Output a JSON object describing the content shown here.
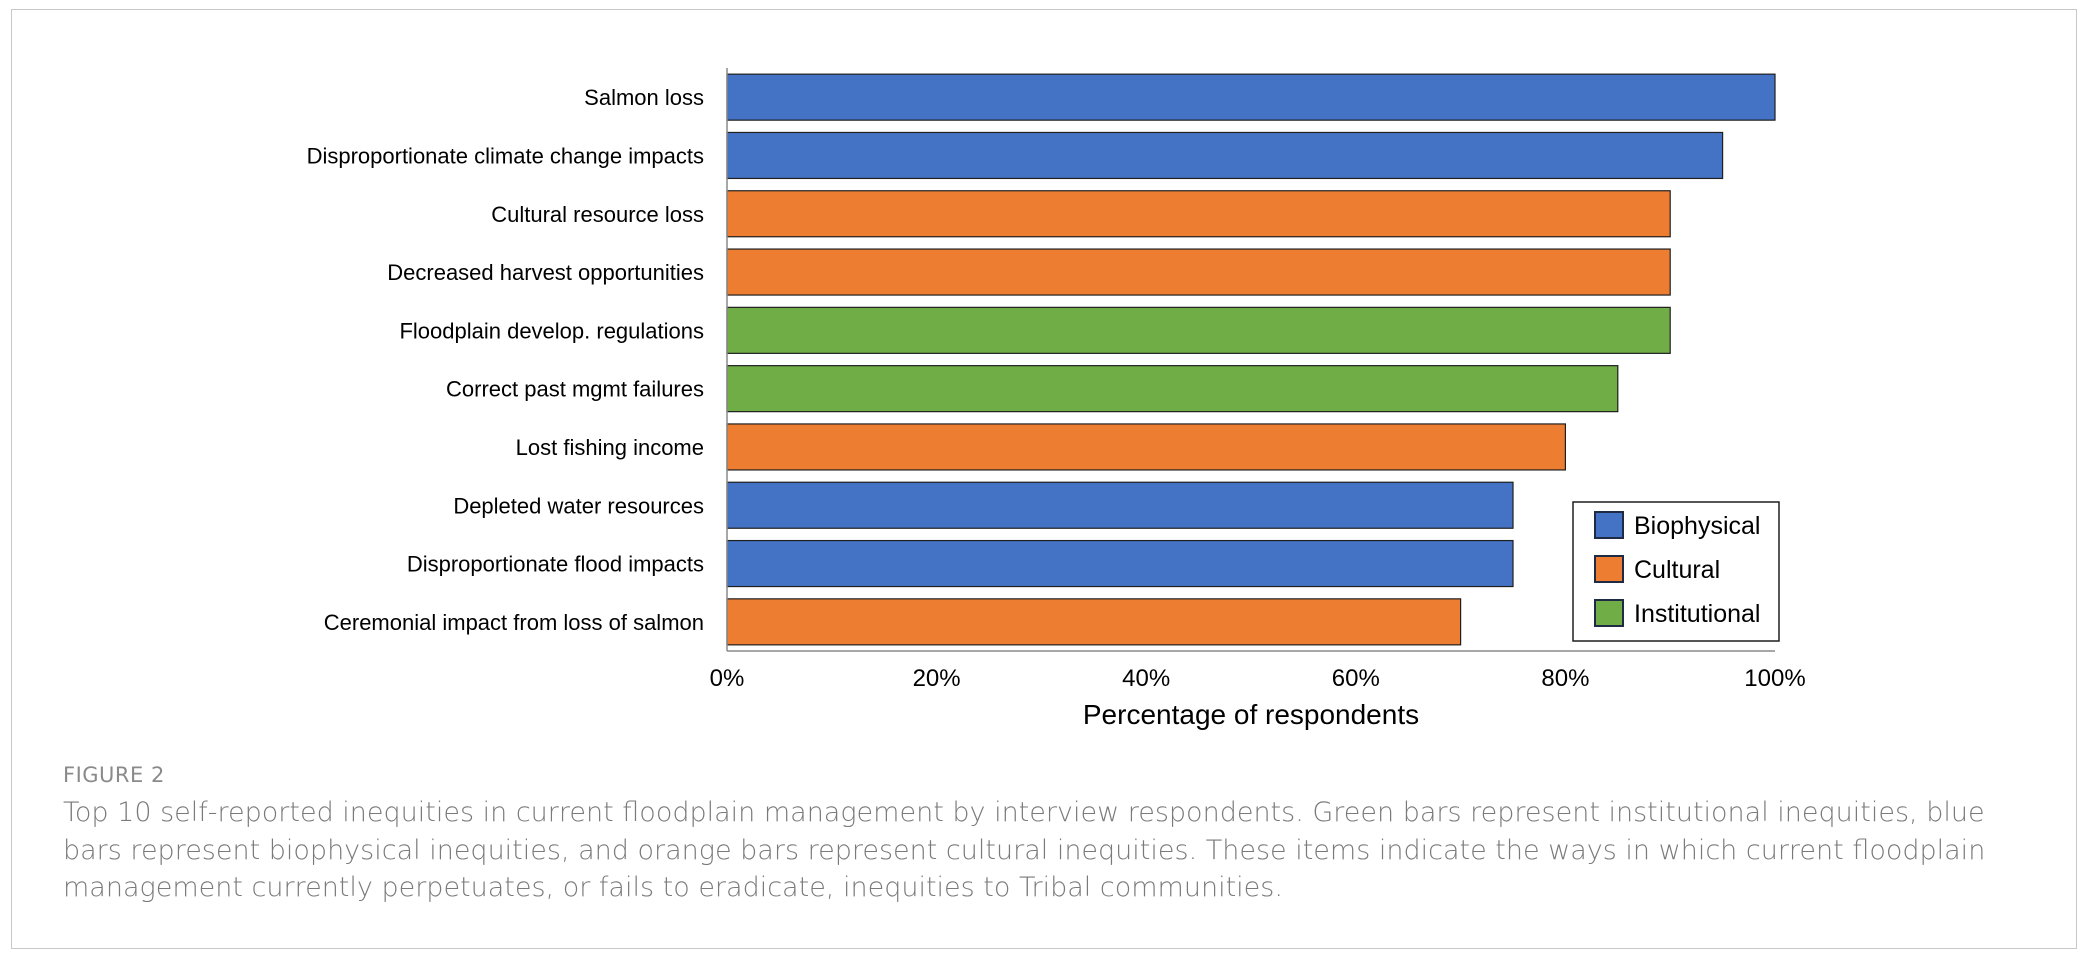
{
  "chart_data": {
    "type": "bar",
    "orientation": "horizontal",
    "categories": [
      "Salmon loss",
      "Disproportionate climate change impacts",
      "Cultural resource loss",
      "Decreased harvest opportunities",
      "Floodplain develop. regulations",
      "Correct past mgmt failures",
      "Lost fishing income",
      "Depleted water resources",
      "Disproportionate flood impacts",
      "Ceremonial impact from loss of salmon"
    ],
    "values": [
      100,
      95,
      90,
      90,
      90,
      85,
      80,
      75,
      75,
      70
    ],
    "groups": [
      "Biophysical",
      "Biophysical",
      "Cultural",
      "Cultural",
      "Institutional",
      "Institutional",
      "Cultural",
      "Biophysical",
      "Biophysical",
      "Cultural"
    ],
    "xlabel": "Percentage of respondents",
    "xlim": [
      0,
      100
    ],
    "x_ticks": [
      "0%",
      "20%",
      "40%",
      "60%",
      "80%",
      "100%"
    ],
    "legend": {
      "placement": "bottom-right",
      "entries": [
        {
          "name": "Biophysical",
          "color": "#4472c4"
        },
        {
          "name": "Cultural",
          "color": "#ed7d31"
        },
        {
          "name": "Institutional",
          "color": "#70ad47"
        }
      ]
    },
    "grid": false
  },
  "figure": {
    "label": "FIGURE 2",
    "caption": "Top 10 self-reported inequities in current floodplain management by interview respondents. Green bars represent institutional inequities, blue bars represent biophysical inequities, and orange bars represent cultural inequities. These items indicate the ways in which current floodplain management currently perpetuates, or fails to eradicate, inequities to Tribal communities."
  }
}
